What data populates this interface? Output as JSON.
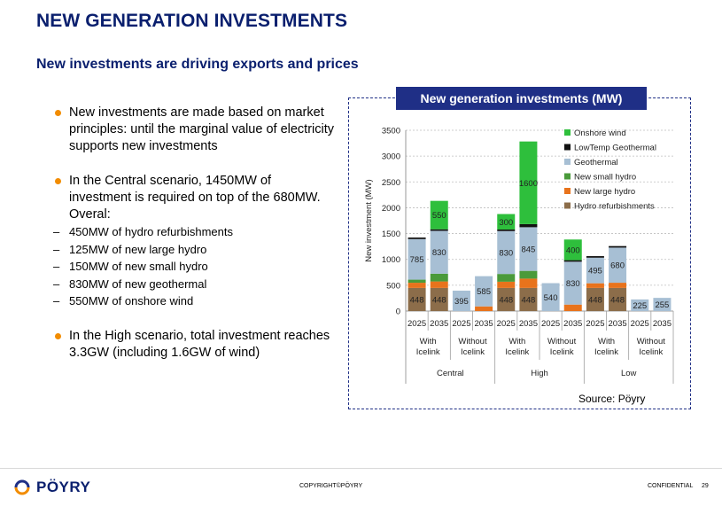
{
  "header": {
    "title": "NEW GENERATION INVESTMENTS",
    "subtitle": "New investments are driving exports and prices"
  },
  "bullets": {
    "b1": "New investments are made based on market principles: until the marginal value of electricity supports new investments",
    "b2": "In the Central scenario, 1450MW of investment is required on top of the 680MW.  Overal:",
    "subs": [
      "450MW of hydro refurbishments",
      "125MW of new large hydro",
      "150MW of new small hydro",
      "830MW of new geothermal",
      "550MW of onshore wind"
    ],
    "b3": "In the High scenario, total investment reaches 3.3GW (including 1.6GW of wind)"
  },
  "chart_box": {
    "title": "New generation investments (MW)",
    "source": "Source: Pöyry"
  },
  "footer": {
    "logo_text": "PÖYRY",
    "copyright": "COPYRIGHT©PÖYRY",
    "confidential": "CONFIDENTIAL",
    "page": "29"
  },
  "colors": {
    "hydro_refurb": "#8c6d4a",
    "new_large_hydro": "#e8731c",
    "new_small_hydro": "#4a9a3a",
    "geothermal": "#a7bfd4",
    "lowtemp_geothermal": "#111111",
    "onshore_wind": "#2ebf3c",
    "accent": "#1f2f86"
  },
  "chart_data": {
    "type": "bar",
    "stacked": true,
    "ylabel": "New investment (MW)",
    "ylim": [
      0,
      3500
    ],
    "yticks": [
      0,
      500,
      1000,
      1500,
      2000,
      2500,
      3000,
      3500
    ],
    "grid": true,
    "legend_position": "top-right",
    "categories": [
      "2025",
      "2035",
      "2025",
      "2035",
      "2025",
      "2035",
      "2025",
      "2035",
      "2025",
      "2035",
      "2025",
      "2035"
    ],
    "subgroups": [
      "With Icelink",
      "Without Icelink",
      "With Icelink",
      "Without Icelink",
      "With Icelink",
      "Without Icelink"
    ],
    "groups": [
      "Central",
      "High",
      "Low"
    ],
    "series": [
      {
        "name": "Hydro refurbishments",
        "color_key": "hydro_refurb",
        "values": [
          448,
          448,
          0,
          0,
          448,
          448,
          0,
          0,
          448,
          448,
          0,
          0
        ]
      },
      {
        "name": "New large hydro",
        "color_key": "new_large_hydro",
        "values": [
          100,
          125,
          0,
          90,
          120,
          180,
          0,
          125,
          90,
          100,
          0,
          0
        ]
      },
      {
        "name": "New small hydro",
        "color_key": "new_small_hydro",
        "values": [
          60,
          150,
          0,
          0,
          150,
          150,
          0,
          0,
          0,
          0,
          0,
          0
        ]
      },
      {
        "name": "Geothermal",
        "color_key": "geothermal",
        "values": [
          785,
          830,
          395,
          585,
          830,
          845,
          540,
          830,
          495,
          680,
          225,
          255
        ]
      },
      {
        "name": "LowTemp Geothermal",
        "color_key": "lowtemp_geothermal",
        "values": [
          30,
          30,
          0,
          0,
          30,
          60,
          0,
          30,
          30,
          30,
          0,
          0
        ]
      },
      {
        "name": "Onshore wind",
        "color_key": "onshore_wind",
        "values": [
          0,
          550,
          0,
          0,
          300,
          1600,
          0,
          400,
          0,
          0,
          0,
          0
        ]
      }
    ],
    "data_labels": [
      {
        "bar": 0,
        "series": "Hydro refurbishments",
        "text": "448"
      },
      {
        "bar": 1,
        "series": "Hydro refurbishments",
        "text": "448"
      },
      {
        "bar": 4,
        "series": "Hydro refurbishments",
        "text": "448"
      },
      {
        "bar": 5,
        "series": "Hydro refurbishments",
        "text": "448"
      },
      {
        "bar": 8,
        "series": "Hydro refurbishments",
        "text": "448"
      },
      {
        "bar": 9,
        "series": "Hydro refurbishments",
        "text": "448"
      },
      {
        "bar": 0,
        "series": "Geothermal",
        "text": "785"
      },
      {
        "bar": 1,
        "series": "Geothermal",
        "text": "830"
      },
      {
        "bar": 2,
        "series": "Geothermal",
        "text": "395"
      },
      {
        "bar": 3,
        "series": "Geothermal",
        "text": "585"
      },
      {
        "bar": 4,
        "series": "Geothermal",
        "text": "830"
      },
      {
        "bar": 5,
        "series": "Geothermal",
        "text": "845"
      },
      {
        "bar": 6,
        "series": "Geothermal",
        "text": "540"
      },
      {
        "bar": 7,
        "series": "Geothermal",
        "text": "830"
      },
      {
        "bar": 8,
        "series": "Geothermal",
        "text": "495"
      },
      {
        "bar": 9,
        "series": "Geothermal",
        "text": "680"
      },
      {
        "bar": 10,
        "series": "Geothermal",
        "text": "225"
      },
      {
        "bar": 11,
        "series": "Geothermal",
        "text": "255"
      },
      {
        "bar": 1,
        "series": "Onshore wind",
        "text": "550"
      },
      {
        "bar": 4,
        "series": "Onshore wind",
        "text": "300"
      },
      {
        "bar": 5,
        "series": "Onshore wind",
        "text": "1600"
      },
      {
        "bar": 7,
        "series": "Onshore wind",
        "text": "400"
      }
    ]
  }
}
